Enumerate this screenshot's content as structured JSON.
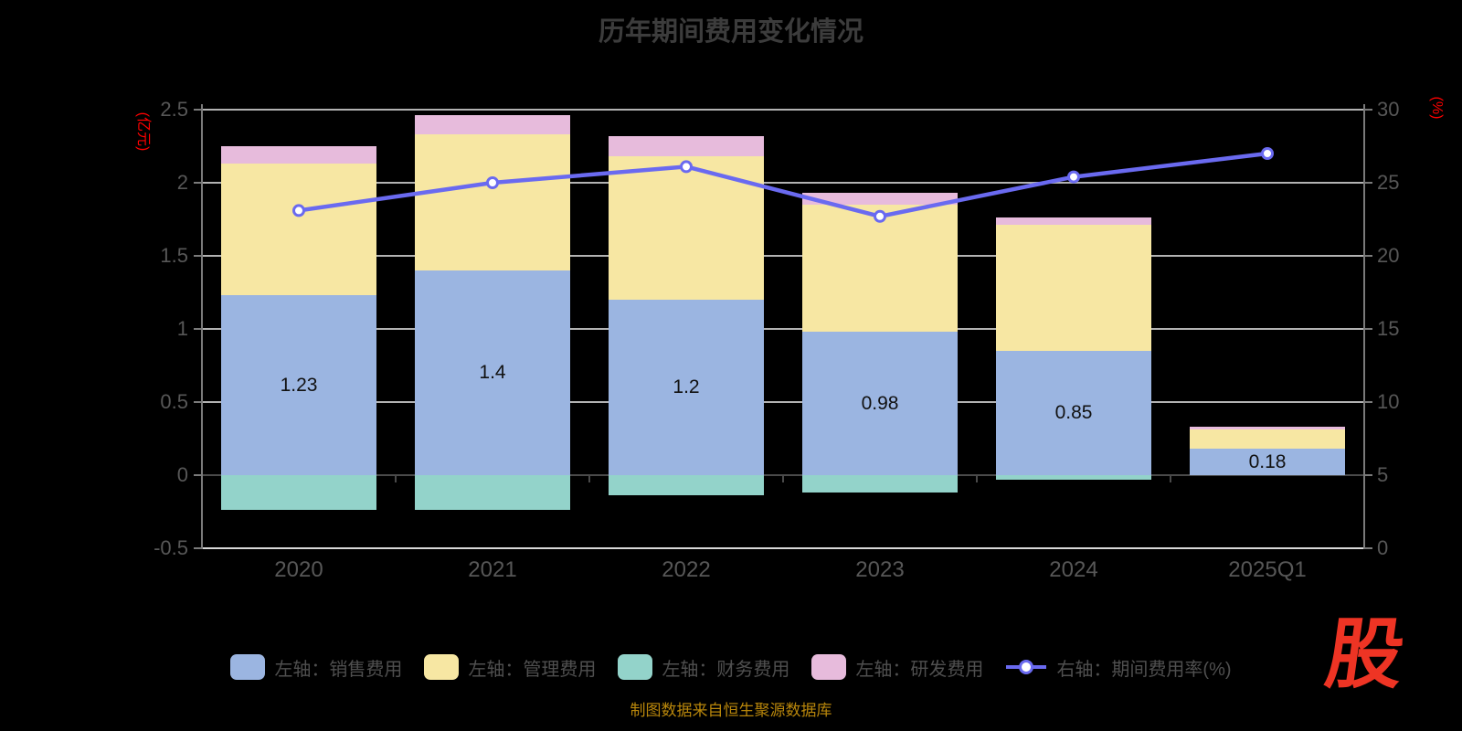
{
  "title": "历年期间费用变化情况",
  "source_note": "制图数据来自恒生聚源数据库",
  "logo_text": "股",
  "colors": {
    "background": "#000000",
    "title": "#3c3c3c",
    "axis_label": "#575757",
    "legend_text": "#4f4f4f",
    "grid_line": "#b2b2b2",
    "bottom_line": "#d8d8d8",
    "zero_axis": "#4a4a4a",
    "axis_line": "#7a7a7a",
    "bar_label": "#111111",
    "unit_label": "#ff0000",
    "source_note": "#b8860b",
    "logo": "#ee3424",
    "marker_fill": "#ffffff"
  },
  "chart_data": {
    "type": "stacked-bar+line",
    "title": "历年期间费用变化情况",
    "categories": [
      "2020",
      "2021",
      "2022",
      "2023",
      "2024",
      "2025Q1"
    ],
    "left_axis": {
      "unit": "(亿元)",
      "ticks": [
        "2.5",
        "2",
        "1.5",
        "1",
        "0.5",
        "0",
        "-0.5"
      ],
      "min": -0.5,
      "max": 2.5
    },
    "right_axis": {
      "unit": "(%)",
      "ticks": [
        "30",
        "25",
        "20",
        "15",
        "10",
        "5",
        "0"
      ],
      "min": 0,
      "max": 30
    },
    "grid": true,
    "legend_position": "bottom",
    "series": [
      {
        "name": "左轴：销售费用",
        "type": "bar",
        "axis": "left",
        "color": "#9bb5e1",
        "values": [
          1.23,
          1.4,
          1.2,
          0.98,
          0.85,
          0.18
        ],
        "value_labels": [
          "1.23",
          "1.4",
          "1.2",
          "0.98",
          "0.85",
          "0.18"
        ]
      },
      {
        "name": "左轴：管理费用",
        "type": "bar",
        "axis": "left",
        "color": "#f7e7a3",
        "values": [
          0.9,
          0.93,
          0.98,
          0.87,
          0.86,
          0.13
        ]
      },
      {
        "name": "左轴：财务费用",
        "type": "bar",
        "axis": "left",
        "color": "#93d3ca",
        "values": [
          -0.24,
          -0.24,
          -0.14,
          -0.12,
          -0.03,
          0
        ]
      },
      {
        "name": "左轴：研发费用",
        "type": "bar",
        "axis": "left",
        "color": "#e7bbdc",
        "values": [
          0.12,
          0.13,
          0.14,
          0.08,
          0.05,
          0.02
        ]
      },
      {
        "name": "右轴：期间费用率(%)",
        "type": "line",
        "axis": "right",
        "color": "#6a6af0",
        "values": [
          23.1,
          25.0,
          26.1,
          22.7,
          25.4,
          27.0
        ]
      }
    ]
  }
}
